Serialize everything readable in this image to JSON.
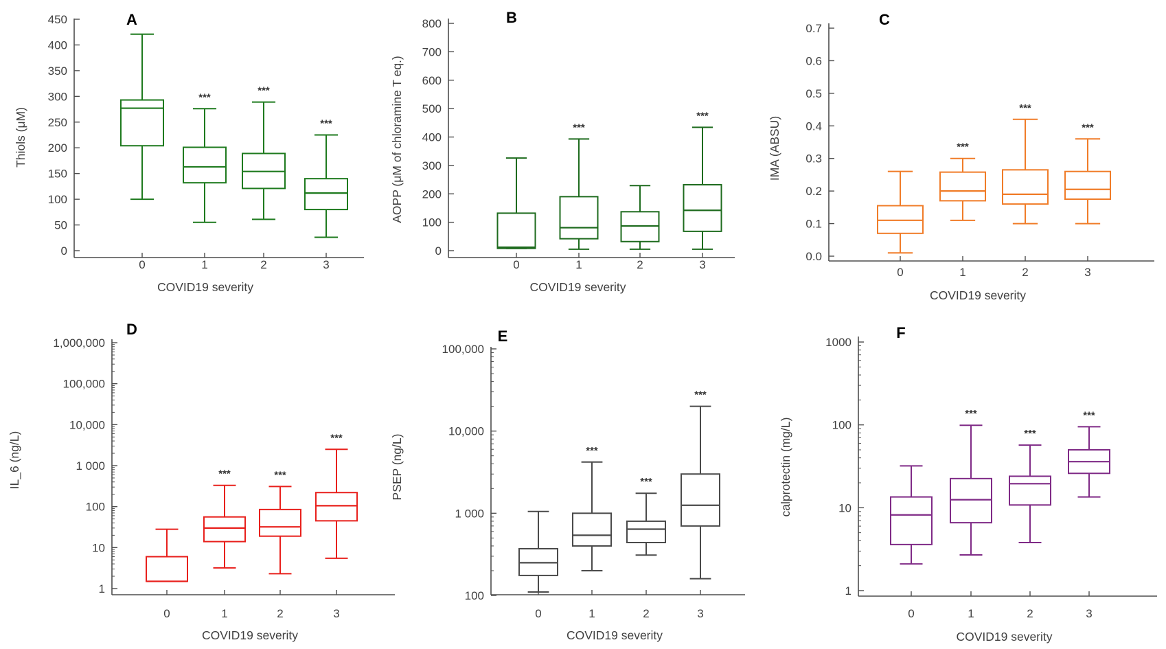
{
  "figure": {
    "colors": {
      "axis": "#4d4d4d",
      "text": "#404040"
    }
  },
  "chart_data": [
    {
      "id": "A",
      "letter": "A",
      "type": "box",
      "scale": "linear",
      "color": "#1e7a1e",
      "xlabel": "COVID19 severity",
      "ylabel": "Thiols (μM)",
      "categories": [
        "0",
        "1",
        "2",
        "3"
      ],
      "ylim": [
        0,
        450
      ],
      "yticks": [
        0,
        50,
        100,
        150,
        200,
        250,
        300,
        350,
        400,
        450
      ],
      "ytick_labels": [
        "0",
        "50",
        "100",
        "150",
        "200",
        "250",
        "300",
        "350",
        "400",
        "450"
      ],
      "boxes": [
        {
          "min": 100,
          "q1": 204,
          "median": 277,
          "q3": 293,
          "max": 421
        },
        {
          "min": 55,
          "q1": 132,
          "median": 163,
          "q3": 201,
          "max": 276
        },
        {
          "min": 61,
          "q1": 121,
          "median": 154,
          "q3": 189,
          "max": 289
        },
        {
          "min": 26,
          "q1": 80,
          "median": 112,
          "q3": 140,
          "max": 225
        }
      ],
      "significance": [
        "",
        "***",
        "***",
        "***"
      ]
    },
    {
      "id": "B",
      "letter": "B",
      "type": "box",
      "scale": "linear",
      "color": "#1e6b1e",
      "xlabel": "COVID19 severity",
      "ylabel": "AOPP (μM of chloramine T eq.)",
      "categories": [
        "0",
        "1",
        "2",
        "3"
      ],
      "ylim": [
        0,
        800
      ],
      "yticks": [
        0,
        100,
        200,
        300,
        400,
        500,
        600,
        700,
        800
      ],
      "ytick_labels": [
        "0",
        "100",
        "200",
        "300",
        "400",
        "500",
        "600",
        "700",
        "800"
      ],
      "boxes": [
        {
          "min": 8,
          "q1": 8,
          "median": 12,
          "q3": 132,
          "max": 326
        },
        {
          "min": 5,
          "q1": 42,
          "median": 81,
          "q3": 190,
          "max": 393
        },
        {
          "min": 5,
          "q1": 32,
          "median": 87,
          "q3": 137,
          "max": 229
        },
        {
          "min": 5,
          "q1": 68,
          "median": 142,
          "q3": 232,
          "max": 434
        }
      ],
      "significance": [
        "",
        "***",
        "",
        "***"
      ]
    },
    {
      "id": "C",
      "letter": "C",
      "type": "box",
      "scale": "linear",
      "color": "#f07c28",
      "xlabel": "COVID19 severity",
      "ylabel": "IMA (ABSU)",
      "categories": [
        "0",
        "1",
        "2",
        "3"
      ],
      "ylim": [
        0,
        0.7
      ],
      "yticks": [
        0,
        0.1,
        0.2,
        0.3,
        0.4,
        0.5,
        0.6,
        0.7
      ],
      "ytick_labels": [
        "0.0",
        "0.1",
        "0.2",
        "0.3",
        "0.4",
        "0.5",
        "0.6",
        "0.7"
      ],
      "boxes": [
        {
          "min": 0.01,
          "q1": 0.07,
          "median": 0.11,
          "q3": 0.155,
          "max": 0.26
        },
        {
          "min": 0.11,
          "q1": 0.17,
          "median": 0.2,
          "q3": 0.258,
          "max": 0.3
        },
        {
          "min": 0.1,
          "q1": 0.16,
          "median": 0.19,
          "q3": 0.265,
          "max": 0.42
        },
        {
          "min": 0.1,
          "q1": 0.175,
          "median": 0.205,
          "q3": 0.26,
          "max": 0.36
        }
      ],
      "significance": [
        "",
        "***",
        "***",
        "***"
      ]
    },
    {
      "id": "D",
      "letter": "D",
      "type": "box",
      "scale": "log",
      "color": "#e8201c",
      "xlabel": "COVID19 severity",
      "ylabel": "IL_6 (ng/L)",
      "categories": [
        "0",
        "1",
        "2",
        "3"
      ],
      "ylim": [
        1,
        1000000
      ],
      "yticks": [
        1,
        10,
        100,
        1000,
        10000,
        100000,
        1000000
      ],
      "ytick_labels": [
        "1",
        "10",
        "100",
        "1 000",
        "10,000",
        "100,000",
        "1,000,000"
      ],
      "boxes": [
        {
          "min": 1.5,
          "q1": 1.5,
          "median": 1.5,
          "q3": 6,
          "max": 28
        },
        {
          "min": 3.2,
          "q1": 14,
          "median": 30,
          "q3": 56,
          "max": 330
        },
        {
          "min": 2.3,
          "q1": 19,
          "median": 32,
          "q3": 85,
          "max": 310
        },
        {
          "min": 5.5,
          "q1": 45,
          "median": 105,
          "q3": 220,
          "max": 2500
        }
      ],
      "significance": [
        "",
        "***",
        "***",
        "***"
      ]
    },
    {
      "id": "E",
      "letter": "E",
      "type": "box",
      "scale": "log",
      "color": "#4a4a4a",
      "xlabel": "COVID19 severity",
      "ylabel": "PSEP (ng/L)",
      "categories": [
        "0",
        "1",
        "2",
        "3"
      ],
      "ylim": [
        100,
        100000
      ],
      "yticks": [
        100,
        1000,
        10000,
        100000
      ],
      "ytick_labels": [
        "100",
        "1 000",
        "10,000",
        "100,000"
      ],
      "boxes": [
        {
          "min": 110,
          "q1": 175,
          "median": 250,
          "q3": 370,
          "max": 1050
        },
        {
          "min": 200,
          "q1": 400,
          "median": 540,
          "q3": 1000,
          "max": 4200
        },
        {
          "min": 310,
          "q1": 440,
          "median": 640,
          "q3": 800,
          "max": 1750
        },
        {
          "min": 160,
          "q1": 700,
          "median": 1250,
          "q3": 3000,
          "max": 20000
        }
      ],
      "significance": [
        "",
        "***",
        "***",
        "***"
      ]
    },
    {
      "id": "F",
      "letter": "F",
      "type": "box",
      "scale": "log",
      "color": "#7f2a86",
      "xlabel": "COVID19 severity",
      "ylabel": "calprotectin (mg/L)",
      "categories": [
        "0",
        "1",
        "2",
        "3"
      ],
      "ylim": [
        1,
        1000
      ],
      "yticks": [
        1,
        10,
        100,
        1000
      ],
      "ytick_labels": [
        "1",
        "10",
        "100",
        "1000"
      ],
      "boxes": [
        {
          "min": 2.1,
          "q1": 3.6,
          "median": 8.2,
          "q3": 13.5,
          "max": 32
        },
        {
          "min": 2.7,
          "q1": 6.6,
          "median": 12.5,
          "q3": 22.5,
          "max": 99
        },
        {
          "min": 3.8,
          "q1": 10.8,
          "median": 19.5,
          "q3": 24,
          "max": 57
        },
        {
          "min": 13.5,
          "q1": 26,
          "median": 36,
          "q3": 50,
          "max": 95
        }
      ],
      "significance": [
        "",
        "***",
        "***",
        "***"
      ]
    }
  ]
}
